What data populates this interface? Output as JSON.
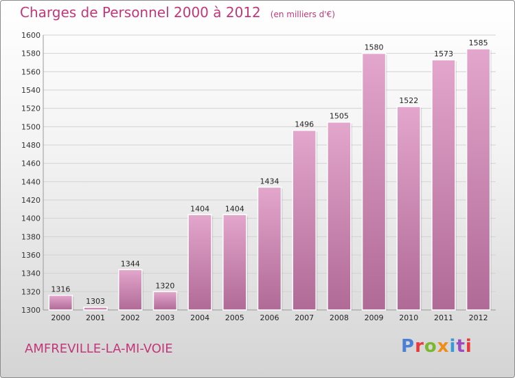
{
  "header": {
    "title": "Charges de Personnel 2000 à 2012",
    "unit": "(en milliers d'€)"
  },
  "footer": {
    "city": "AMFREVILLE-LA-MI-VOIE",
    "logo": "Proxiti"
  },
  "colors": {
    "bar_light": "#e3a6cc",
    "bar_dark": "#b06a96",
    "title": "#c2367a",
    "logo": [
      "#4a7fd4",
      "#e8383a",
      "#7cb82f",
      "#f08c1a",
      "#3a9ad9",
      "#9a4bbf",
      "#e8383a"
    ]
  },
  "chart_data": {
    "type": "bar",
    "categories": [
      "2000",
      "2001",
      "2002",
      "2003",
      "2004",
      "2005",
      "2006",
      "2007",
      "2008",
      "2009",
      "2010",
      "2011",
      "2012"
    ],
    "values": [
      1316,
      1303,
      1344,
      1320,
      1404,
      1404,
      1434,
      1496,
      1505,
      1580,
      1522,
      1573,
      1585
    ],
    "ylim": [
      1300,
      1600
    ],
    "yticks": [
      1300,
      1320,
      1340,
      1360,
      1380,
      1400,
      1420,
      1440,
      1460,
      1480,
      1500,
      1520,
      1540,
      1560,
      1580,
      1600
    ],
    "grid": true,
    "legend": "none"
  }
}
